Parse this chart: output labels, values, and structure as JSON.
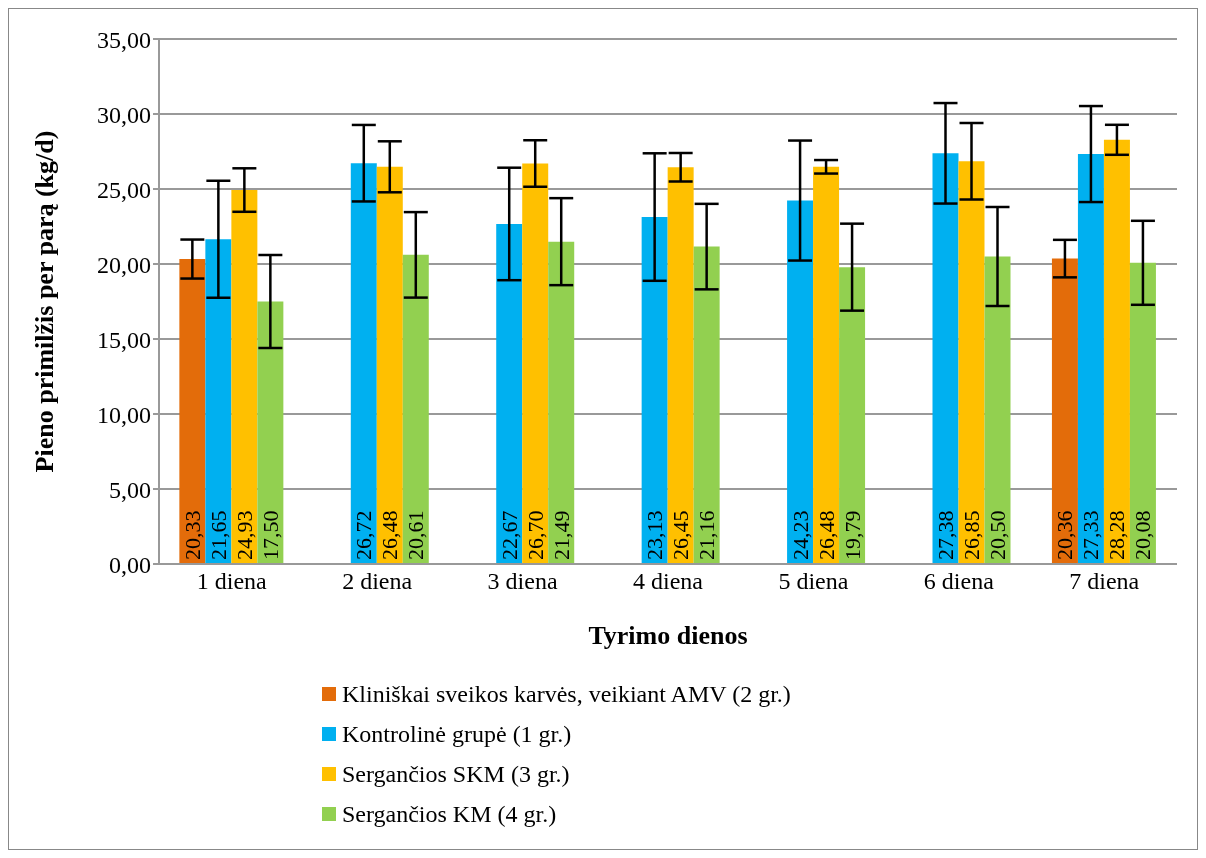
{
  "chart_data": {
    "type": "bar",
    "xlabel": "Tyrimo dienos",
    "ylabel": "Pieno primilžis per parą (kg/d)",
    "categories": [
      "1 diena",
      "2 diena",
      "3 diena",
      "4 diena",
      "5 diena",
      "6 diena",
      "7 diena"
    ],
    "series": [
      {
        "name": "Kliniškai sveikos karvės, veikiant AMV (2 gr.)",
        "color": "#e36c0a",
        "values": [
          20.33,
          null,
          null,
          null,
          null,
          null,
          20.36
        ],
        "errors": [
          1.3,
          null,
          null,
          null,
          null,
          null,
          1.25
        ],
        "value_labels": [
          "20,33",
          null,
          null,
          null,
          null,
          null,
          "20,36"
        ]
      },
      {
        "name": "Kontrolinė grupė (1 gr.)",
        "color": "#00b0f0",
        "values": [
          21.65,
          26.72,
          22.67,
          23.13,
          24.23,
          27.38,
          27.33
        ],
        "errors": [
          3.9,
          2.55,
          3.75,
          4.25,
          4.0,
          3.35,
          3.2
        ],
        "value_labels": [
          "21,65",
          "26,72",
          "22,67",
          "23,13",
          "24,23",
          "27,38",
          "27,33"
        ]
      },
      {
        "name": "Sergančios SKM (3 gr.)",
        "color": "#ffc000",
        "values": [
          24.93,
          26.48,
          26.7,
          26.45,
          26.48,
          26.85,
          28.28
        ],
        "errors": [
          1.45,
          1.7,
          1.55,
          0.95,
          0.45,
          2.55,
          1.0
        ],
        "value_labels": [
          "24,93",
          "26,48",
          "26,70",
          "26,45",
          "26,48",
          "26,85",
          "28,28"
        ]
      },
      {
        "name": "Sergančios KM (4 gr.)",
        "color": "#92d050",
        "values": [
          17.5,
          20.61,
          21.49,
          21.16,
          19.79,
          20.5,
          20.08
        ],
        "errors": [
          3.1,
          2.85,
          2.9,
          2.85,
          2.9,
          3.3,
          2.8
        ],
        "value_labels": [
          "17,50",
          "20,61",
          "21,49",
          "21,16",
          "19,79",
          "20,50",
          "20,08"
        ]
      }
    ],
    "ylim": [
      0,
      35
    ],
    "yticks": [
      {
        "value": 0,
        "label": "0,00"
      },
      {
        "value": 5,
        "label": "5,00"
      },
      {
        "value": 10,
        "label": "10,00"
      },
      {
        "value": 15,
        "label": "15,00"
      },
      {
        "value": 20,
        "label": "20,00"
      },
      {
        "value": 25,
        "label": "25,00"
      },
      {
        "value": 30,
        "label": "30,00"
      },
      {
        "value": 35,
        "label": "35,00"
      }
    ],
    "grid": "y",
    "legend": "bottom"
  }
}
